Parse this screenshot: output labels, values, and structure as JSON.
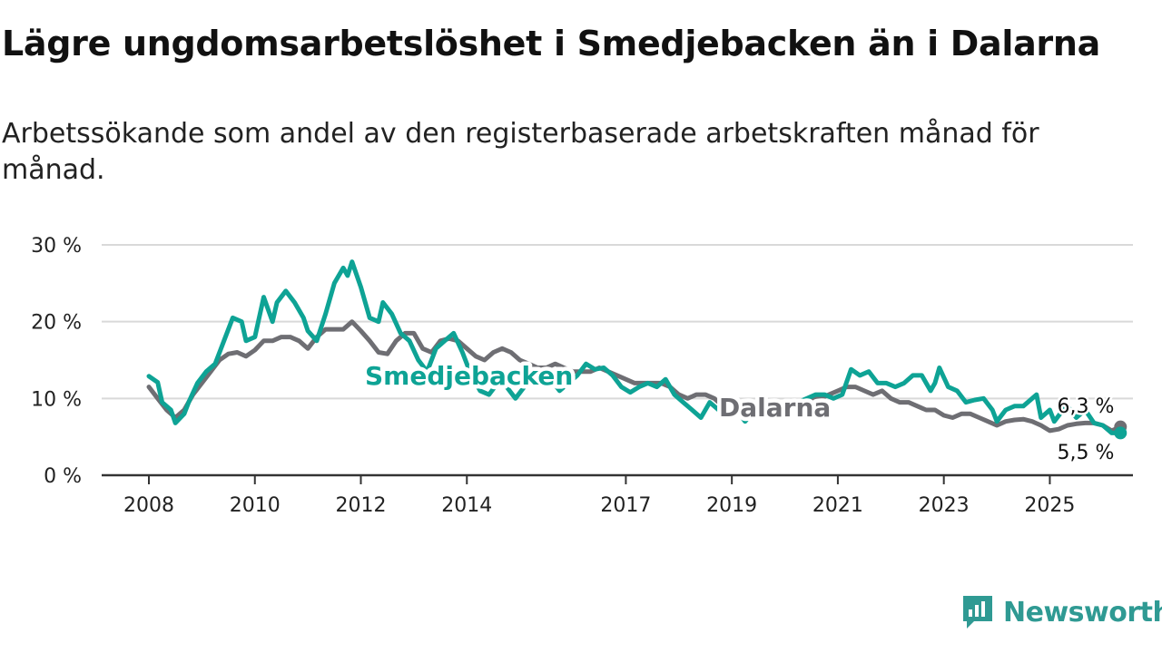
{
  "header": {
    "title": "Lägre ungdomsarbetslöshet i Smedjebacken än i Dalarna",
    "subtitle": "Arbetssökande som andel av den registerbaserade arbetskraften månad för månad."
  },
  "brand": {
    "name": "Newsworthy",
    "color": "#2f9a93",
    "icon": "bar-chart-speech-bubble-icon"
  },
  "chart_data": {
    "type": "line",
    "title": "Lägre ungdomsarbetslöshet i Smedjebacken än i Dalarna",
    "subtitle": "Arbetssökande som andel av den registerbaserade arbetskraften månad för månad.",
    "xlabel": "",
    "ylabel": "",
    "ylim": [
      0,
      30
    ],
    "xlim": [
      "2008-01",
      "2026-07"
    ],
    "yticks": [
      "0 %",
      "10 %",
      "20 %",
      "30 %"
    ],
    "xticks": [
      "2008",
      "2010",
      "2012",
      "2014",
      "2017",
      "2019",
      "2021",
      "2023",
      "2025"
    ],
    "grid": true,
    "legend": "direct labels on lines",
    "series": [
      {
        "name": "Smedjebacken",
        "color": "#0ea395",
        "end_label": "5,5 %",
        "points": [
          [
            "2008-01",
            12.9
          ],
          [
            "2008-03",
            12.1
          ],
          [
            "2008-04",
            9.5
          ],
          [
            "2008-06",
            8.5
          ],
          [
            "2008-07",
            6.8
          ],
          [
            "2008-09",
            8.0
          ],
          [
            "2008-10",
            9.5
          ],
          [
            "2008-12",
            12.0
          ],
          [
            "2009-02",
            13.5
          ],
          [
            "2009-04",
            14.5
          ],
          [
            "2009-06",
            17.5
          ],
          [
            "2009-08",
            20.5
          ],
          [
            "2009-10",
            20.0
          ],
          [
            "2009-11",
            17.5
          ],
          [
            "2010-01",
            18.0
          ],
          [
            "2010-03",
            23.2
          ],
          [
            "2010-05",
            20.0
          ],
          [
            "2010-06",
            22.5
          ],
          [
            "2010-08",
            24.0
          ],
          [
            "2010-10",
            22.5
          ],
          [
            "2010-12",
            20.5
          ],
          [
            "2011-01",
            18.8
          ],
          [
            "2011-03",
            17.5
          ],
          [
            "2011-05",
            21.0
          ],
          [
            "2011-07",
            25.0
          ],
          [
            "2011-09",
            27.0
          ],
          [
            "2011-10",
            26.0
          ],
          [
            "2011-11",
            27.8
          ],
          [
            "2012-01",
            24.5
          ],
          [
            "2012-03",
            20.5
          ],
          [
            "2012-05",
            20.0
          ],
          [
            "2012-06",
            22.5
          ],
          [
            "2012-08",
            21.0
          ],
          [
            "2012-10",
            18.5
          ],
          [
            "2012-12",
            17.5
          ],
          [
            "2013-02",
            15.0
          ],
          [
            "2013-04",
            13.5
          ],
          [
            "2013-06",
            16.5
          ],
          [
            "2013-08",
            17.5
          ],
          [
            "2013-10",
            18.5
          ],
          [
            "2013-12",
            16.0
          ],
          [
            "2014-02",
            13.0
          ],
          [
            "2014-04",
            11.0
          ],
          [
            "2014-06",
            10.5
          ],
          [
            "2014-08",
            12.0
          ],
          [
            "2014-10",
            11.5
          ],
          [
            "2014-12",
            10.0
          ],
          [
            "2015-02",
            11.5
          ],
          [
            "2015-04",
            12.5
          ],
          [
            "2015-06",
            13.0
          ],
          [
            "2015-08",
            12.5
          ],
          [
            "2015-10",
            11.0
          ],
          [
            "2015-12",
            12.0
          ],
          [
            "2016-02",
            13.0
          ],
          [
            "2016-04",
            14.5
          ],
          [
            "2016-06",
            13.8
          ],
          [
            "2016-08",
            14.0
          ],
          [
            "2016-10",
            13.0
          ],
          [
            "2016-12",
            11.5
          ],
          [
            "2017-02",
            10.8
          ],
          [
            "2017-04",
            11.5
          ],
          [
            "2017-06",
            12.0
          ],
          [
            "2017-08",
            11.5
          ],
          [
            "2017-10",
            12.5
          ],
          [
            "2017-12",
            10.5
          ],
          [
            "2018-02",
            9.5
          ],
          [
            "2018-04",
            8.5
          ],
          [
            "2018-06",
            7.5
          ],
          [
            "2018-08",
            9.5
          ],
          [
            "2018-10",
            8.5
          ],
          [
            "2018-12",
            8.0
          ],
          [
            "2019-02",
            8.5
          ],
          [
            "2019-04",
            7.0
          ],
          [
            "2019-06",
            8.5
          ],
          [
            "2019-08",
            10.0
          ],
          [
            "2019-10",
            9.0
          ],
          [
            "2019-12",
            8.5
          ],
          [
            "2020-02",
            9.5
          ],
          [
            "2020-04",
            9.5
          ],
          [
            "2020-06",
            10.0
          ],
          [
            "2020-08",
            10.5
          ],
          [
            "2020-10",
            10.5
          ],
          [
            "2020-12",
            10.0
          ],
          [
            "2021-02",
            10.5
          ],
          [
            "2021-04",
            13.8
          ],
          [
            "2021-06",
            13.0
          ],
          [
            "2021-08",
            13.5
          ],
          [
            "2021-10",
            12.0
          ],
          [
            "2021-12",
            12.0
          ],
          [
            "2022-02",
            11.5
          ],
          [
            "2022-04",
            12.0
          ],
          [
            "2022-06",
            13.0
          ],
          [
            "2022-08",
            13.0
          ],
          [
            "2022-10",
            11.0
          ],
          [
            "2022-11",
            12.0
          ],
          [
            "2022-12",
            14.0
          ],
          [
            "2023-02",
            11.5
          ],
          [
            "2023-04",
            11.0
          ],
          [
            "2023-06",
            9.5
          ],
          [
            "2023-08",
            9.8
          ],
          [
            "2023-10",
            10.0
          ],
          [
            "2023-12",
            8.5
          ],
          [
            "2024-01",
            7.0
          ],
          [
            "2024-03",
            8.5
          ],
          [
            "2024-05",
            9.0
          ],
          [
            "2024-07",
            9.0
          ],
          [
            "2024-09",
            10.0
          ],
          [
            "2024-10",
            10.5
          ],
          [
            "2024-11",
            7.5
          ],
          [
            "2025-01",
            8.5
          ],
          [
            "2025-02",
            7.0
          ],
          [
            "2025-04",
            8.5
          ],
          [
            "2025-05",
            9.0
          ],
          [
            "2025-07",
            7.5
          ],
          [
            "2025-09",
            8.5
          ],
          [
            "2025-11",
            6.8
          ],
          [
            "2026-01",
            6.5
          ],
          [
            "2026-03",
            5.5
          ],
          [
            "2026-05",
            5.5
          ]
        ]
      },
      {
        "name": "Dalarna",
        "color": "#6e6e73",
        "end_label": "6,3 %",
        "points": [
          [
            "2008-01",
            11.5
          ],
          [
            "2008-03",
            10.0
          ],
          [
            "2008-05",
            8.5
          ],
          [
            "2008-07",
            7.5
          ],
          [
            "2008-09",
            8.5
          ],
          [
            "2008-11",
            10.5
          ],
          [
            "2009-01",
            12.0
          ],
          [
            "2009-03",
            13.5
          ],
          [
            "2009-05",
            15.0
          ],
          [
            "2009-07",
            15.8
          ],
          [
            "2009-09",
            16.0
          ],
          [
            "2009-11",
            15.5
          ],
          [
            "2010-01",
            16.3
          ],
          [
            "2010-03",
            17.5
          ],
          [
            "2010-05",
            17.5
          ],
          [
            "2010-07",
            18.0
          ],
          [
            "2010-09",
            18.0
          ],
          [
            "2010-11",
            17.5
          ],
          [
            "2011-01",
            16.5
          ],
          [
            "2011-03",
            18.0
          ],
          [
            "2011-05",
            19.0
          ],
          [
            "2011-07",
            19.0
          ],
          [
            "2011-09",
            19.0
          ],
          [
            "2011-11",
            20.0
          ],
          [
            "2012-01",
            18.8
          ],
          [
            "2012-03",
            17.5
          ],
          [
            "2012-05",
            16.0
          ],
          [
            "2012-07",
            15.8
          ],
          [
            "2012-09",
            17.5
          ],
          [
            "2012-11",
            18.5
          ],
          [
            "2013-01",
            18.5
          ],
          [
            "2013-03",
            16.5
          ],
          [
            "2013-05",
            16.0
          ],
          [
            "2013-07",
            17.5
          ],
          [
            "2013-09",
            17.8
          ],
          [
            "2013-11",
            17.5
          ],
          [
            "2014-01",
            16.5
          ],
          [
            "2014-03",
            15.5
          ],
          [
            "2014-05",
            15.0
          ],
          [
            "2014-07",
            16.0
          ],
          [
            "2014-09",
            16.5
          ],
          [
            "2014-11",
            16.0
          ],
          [
            "2015-01",
            15.0
          ],
          [
            "2015-03",
            14.5
          ],
          [
            "2015-05",
            14.0
          ],
          [
            "2015-07",
            14.0
          ],
          [
            "2015-09",
            14.5
          ],
          [
            "2015-11",
            14.0
          ],
          [
            "2016-01",
            13.5
          ],
          [
            "2016-03",
            13.5
          ],
          [
            "2016-05",
            13.5
          ],
          [
            "2016-07",
            14.0
          ],
          [
            "2016-09",
            13.5
          ],
          [
            "2016-11",
            13.0
          ],
          [
            "2017-01",
            12.5
          ],
          [
            "2017-03",
            12.0
          ],
          [
            "2017-05",
            12.0
          ],
          [
            "2017-07",
            12.0
          ],
          [
            "2017-09",
            12.0
          ],
          [
            "2017-11",
            11.5
          ],
          [
            "2018-01",
            10.5
          ],
          [
            "2018-03",
            10.0
          ],
          [
            "2018-05",
            10.5
          ],
          [
            "2018-07",
            10.5
          ],
          [
            "2018-09",
            10.0
          ],
          [
            "2018-11",
            9.0
          ],
          [
            "2019-01",
            8.5
          ],
          [
            "2019-03",
            8.5
          ],
          [
            "2019-05",
            8.5
          ],
          [
            "2019-07",
            8.5
          ],
          [
            "2019-09",
            8.0
          ],
          [
            "2019-11",
            8.0
          ],
          [
            "2020-01",
            8.5
          ],
          [
            "2020-03",
            9.0
          ],
          [
            "2020-05",
            9.5
          ],
          [
            "2020-07",
            10.0
          ],
          [
            "2020-09",
            10.0
          ],
          [
            "2020-11",
            10.5
          ],
          [
            "2021-01",
            11.0
          ],
          [
            "2021-03",
            11.5
          ],
          [
            "2021-05",
            11.5
          ],
          [
            "2021-07",
            11.0
          ],
          [
            "2021-09",
            10.5
          ],
          [
            "2021-11",
            11.0
          ],
          [
            "2022-01",
            10.0
          ],
          [
            "2022-03",
            9.5
          ],
          [
            "2022-05",
            9.5
          ],
          [
            "2022-07",
            9.0
          ],
          [
            "2022-09",
            8.5
          ],
          [
            "2022-11",
            8.5
          ],
          [
            "2023-01",
            7.8
          ],
          [
            "2023-03",
            7.5
          ],
          [
            "2023-05",
            8.0
          ],
          [
            "2023-07",
            8.0
          ],
          [
            "2023-09",
            7.5
          ],
          [
            "2023-11",
            7.0
          ],
          [
            "2024-01",
            6.5
          ],
          [
            "2024-03",
            7.0
          ],
          [
            "2024-05",
            7.2
          ],
          [
            "2024-07",
            7.3
          ],
          [
            "2024-09",
            7.0
          ],
          [
            "2024-11",
            6.5
          ],
          [
            "2025-01",
            5.8
          ],
          [
            "2025-03",
            6.0
          ],
          [
            "2025-05",
            6.5
          ],
          [
            "2025-07",
            6.7
          ],
          [
            "2025-09",
            6.8
          ],
          [
            "2025-11",
            6.8
          ],
          [
            "2026-01",
            6.5
          ],
          [
            "2026-03",
            5.8
          ],
          [
            "2026-05",
            6.3
          ]
        ]
      }
    ]
  }
}
